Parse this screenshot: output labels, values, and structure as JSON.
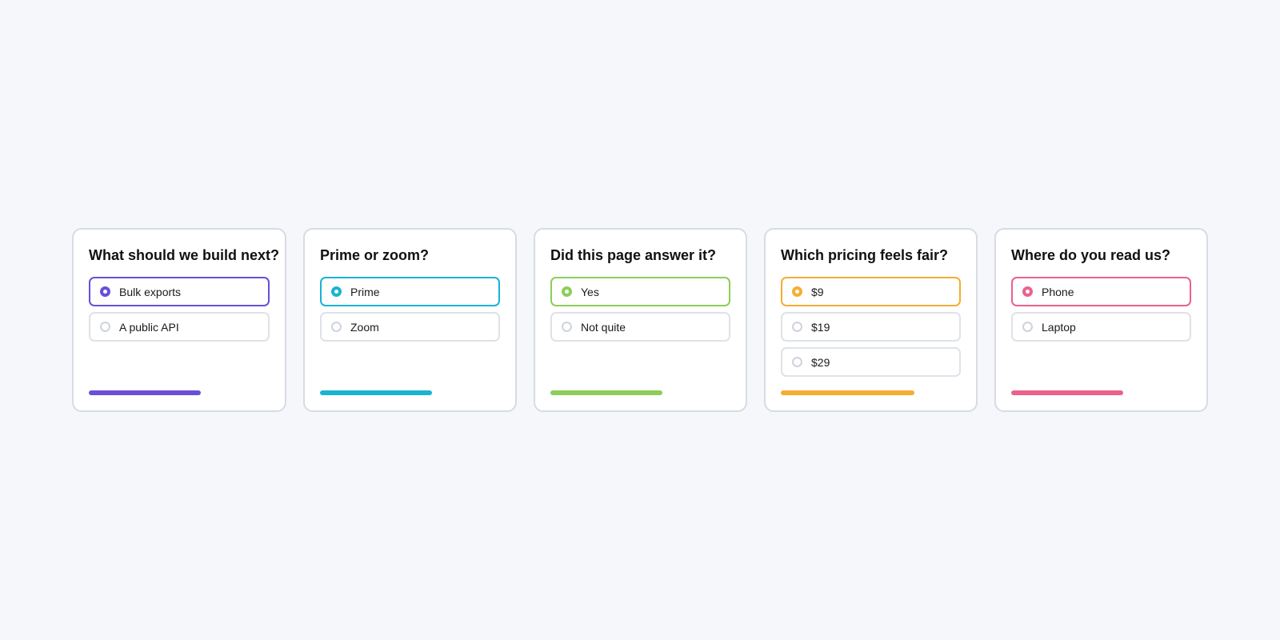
{
  "polls": [
    {
      "question": "What should we build next?",
      "accent": "#6a4fd8",
      "progress": 0.62,
      "options": [
        {
          "label": "Bulk exports",
          "selected": true
        },
        {
          "label": "A public API",
          "selected": false
        }
      ]
    },
    {
      "question": "Prime or zoom?",
      "accent": "#1ab3d3",
      "progress": 0.62,
      "options": [
        {
          "label": "Prime",
          "selected": true
        },
        {
          "label": "Zoom",
          "selected": false
        }
      ]
    },
    {
      "question": "Did this page answer it?",
      "accent": "#8dcd5a",
      "progress": 0.62,
      "options": [
        {
          "label": "Yes",
          "selected": true
        },
        {
          "label": "Not quite",
          "selected": false
        }
      ]
    },
    {
      "question": "Which pricing feels fair?",
      "accent": "#f5ad32",
      "progress": 0.74,
      "options": [
        {
          "label": "$9",
          "selected": true
        },
        {
          "label": "$19",
          "selected": false
        },
        {
          "label": "$29",
          "selected": false
        }
      ]
    },
    {
      "question": "Where do you read us?",
      "accent": "#ea628c",
      "progress": 0.62,
      "options": [
        {
          "label": "Phone",
          "selected": true
        },
        {
          "label": "Laptop",
          "selected": false
        }
      ]
    }
  ]
}
